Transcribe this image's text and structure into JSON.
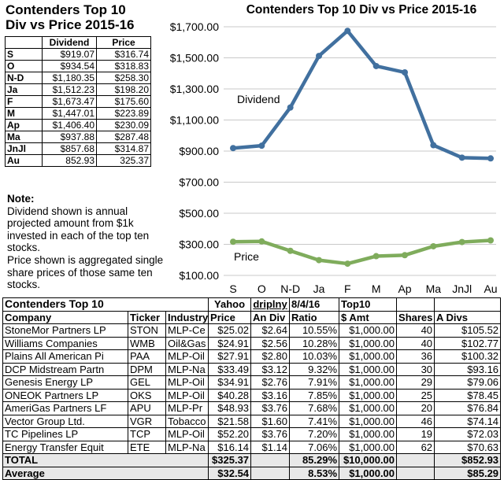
{
  "top_left": {
    "title_line1": "Contenders Top 10",
    "title_line2": "Div vs Price 2015-16",
    "col_dividend": "Dividend",
    "col_price": "Price",
    "rows": [
      {
        "label": "S",
        "dividend": "$919.07",
        "price": "$316.74"
      },
      {
        "label": "O",
        "dividend": "$934.54",
        "price": "$318.83"
      },
      {
        "label": "N-D",
        "dividend": "$1,180.35",
        "price": "$258.30"
      },
      {
        "label": "Ja",
        "dividend": "$1,512.23",
        "price": "$198.20"
      },
      {
        "label": "F",
        "dividend": "$1,673.47",
        "price": "$175.60"
      },
      {
        "label": "M",
        "dividend": "$1,447.01",
        "price": "$223.89"
      },
      {
        "label": "Ap",
        "dividend": "$1,406.40",
        "price": "$230.09"
      },
      {
        "label": "Ma",
        "dividend": "$937.88",
        "price": "$287.48"
      },
      {
        "label": "JnJl",
        "dividend": "$857.68",
        "price": "$314.87"
      },
      {
        "label": "Au",
        "dividend": "852.93",
        "price": "325.37"
      }
    ]
  },
  "note": {
    "heading": "Note:",
    "text1": "Dividend shown is annual projected amount from $1k invested in each of the top ten stocks.",
    "text2": "Price shown is aggregated single share prices of those same ten stocks."
  },
  "chart_data": {
    "type": "line",
    "title": "Contenders Top 10 Div vs Price 2015-16",
    "categories": [
      "S",
      "O",
      "N-D",
      "Ja",
      "F",
      "M",
      "Ap",
      "Ma",
      "JnJl",
      "Au"
    ],
    "series": [
      {
        "name": "Dividend",
        "values": [
          919.07,
          934.54,
          1180.35,
          1512.23,
          1673.47,
          1447.01,
          1406.4,
          937.88,
          857.68,
          852.93
        ],
        "color": "#41709f"
      },
      {
        "name": "Price",
        "values": [
          316.74,
          318.83,
          258.3,
          198.2,
          175.6,
          223.89,
          230.09,
          287.48,
          314.87,
          325.37
        ],
        "color": "#7fac5c"
      }
    ],
    "yticks": [
      "$100.00",
      "$300.00",
      "$500.00",
      "$700.00",
      "$900.00",
      "$1,100.00",
      "$1,300.00",
      "$1,500.00",
      "$1,700.00"
    ],
    "ylim": [
      100,
      1700
    ],
    "grid": true,
    "legend": "inline labels"
  },
  "table": {
    "title": "Contenders Top 10",
    "group_headers": {
      "yahoo": "Yahoo",
      "driplny": "driplny",
      "date": "8/4/16",
      "top10": "Top10"
    },
    "columns": [
      "Company",
      "Ticker",
      "Industry",
      "Price",
      "An Div",
      "Ratio",
      "$ Amt",
      "Shares",
      "A Divs"
    ],
    "rows": [
      [
        "StoneMor Partners LP",
        "STON",
        "MLP-Ce",
        "$25.02",
        "$2.64",
        "10.55%",
        "$1,000.00",
        "40",
        "$105.52"
      ],
      [
        "Williams Companies",
        "WMB",
        "Oil&Gas",
        "$24.91",
        "$2.56",
        "10.28%",
        "$1,000.00",
        "40",
        "$102.77"
      ],
      [
        "Plains All American Pi",
        "PAA",
        "MLP-Oil",
        "$27.91",
        "$2.80",
        "10.03%",
        "$1,000.00",
        "36",
        "$100.32"
      ],
      [
        "DCP Midstream Partn",
        "DPM",
        "MLP-Na",
        "$33.49",
        "$3.12",
        "9.32%",
        "$1,000.00",
        "30",
        "$93.16"
      ],
      [
        "Genesis Energy LP",
        "GEL",
        "MLP-Oil",
        "$34.91",
        "$2.76",
        "7.91%",
        "$1,000.00",
        "29",
        "$79.06"
      ],
      [
        "ONEOK Partners LP",
        "OKS",
        "MLP-Oil",
        "$40.28",
        "$3.16",
        "7.85%",
        "$1,000.00",
        "25",
        "$78.45"
      ],
      [
        "AmeriGas Partners LF",
        "APU",
        "MLP-Pr",
        "$48.93",
        "$3.76",
        "7.68%",
        "$1,000.00",
        "20",
        "$76.84"
      ],
      [
        "Vector Group Ltd.",
        "VGR",
        "Tobacco",
        "$21.58",
        "$1.60",
        "7.41%",
        "$1,000.00",
        "46",
        "$74.14"
      ],
      [
        "TC Pipelines LP",
        "TCP",
        "MLP-Oil",
        "$52.20",
        "$3.76",
        "7.20%",
        "$1,000.00",
        "19",
        "$72.03"
      ],
      [
        "Energy Transfer Equit",
        "ETE",
        "MLP-Na",
        "$16.14",
        "$1.14",
        "7.06%",
        "$1,000.00",
        "62",
        "$70.63"
      ]
    ],
    "total": {
      "label": "TOTAL",
      "price": "$325.37",
      "ratio": "85.29%",
      "amt": "$10,000.00",
      "adivs": "$852.93"
    },
    "average": {
      "label": "Average",
      "price": "$32.54",
      "ratio": "8.53%",
      "amt": "$1,000.00",
      "adivs": "$85.29"
    }
  }
}
